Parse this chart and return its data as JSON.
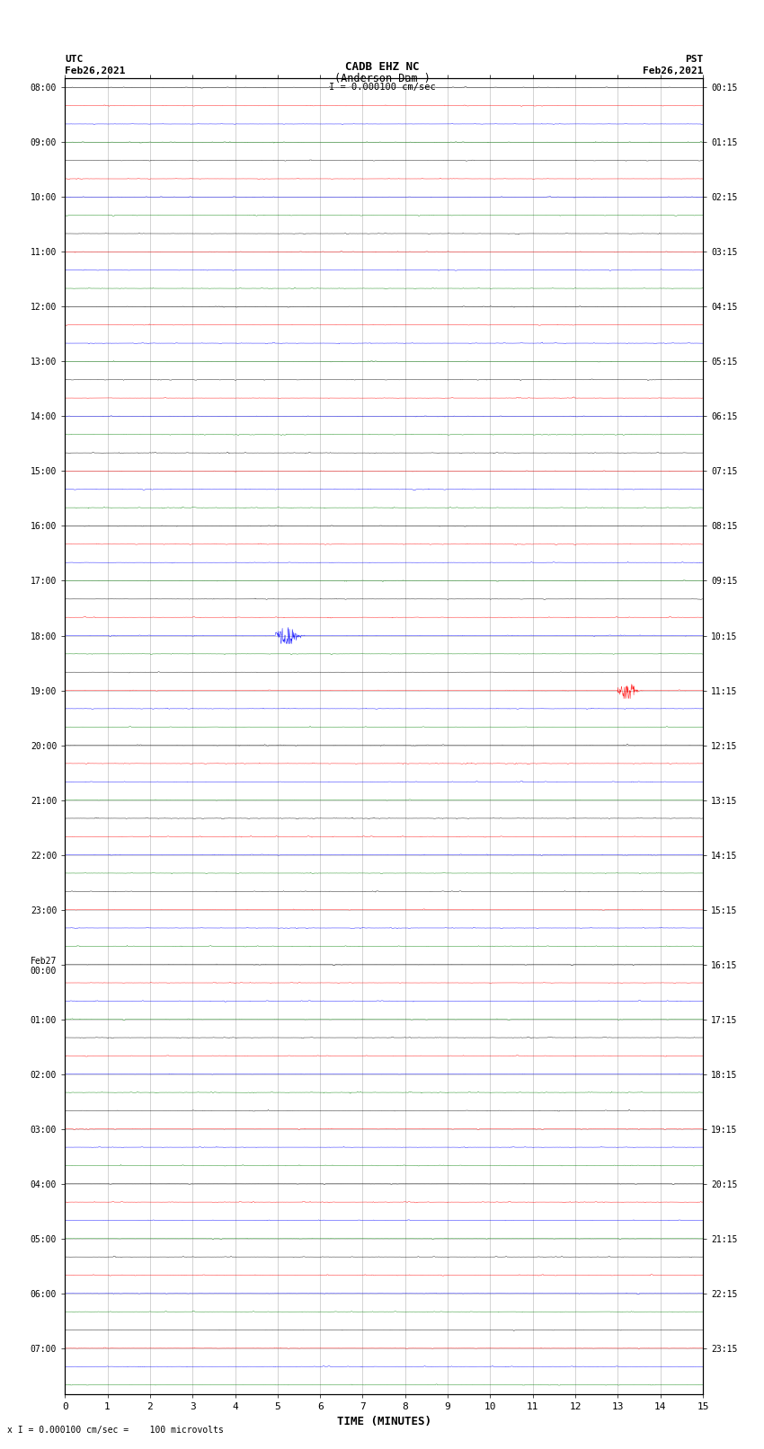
{
  "title_line1": "CADB EHZ NC",
  "title_line2": "(Anderson Dam )",
  "scale_label": "I = 0.000100 cm/sec",
  "left_header": "UTC\nFeb26,2021",
  "right_header": "PST\nFeb26,2021",
  "bottom_note": "x I = 0.000100 cm/sec =    100 microvolts",
  "xlabel": "TIME (MINUTES)",
  "xticks": [
    0,
    1,
    2,
    3,
    4,
    5,
    6,
    7,
    8,
    9,
    10,
    11,
    12,
    13,
    14,
    15
  ],
  "left_times": [
    "08:00",
    "",
    "",
    "09:00",
    "",
    "",
    "10:00",
    "",
    "",
    "11:00",
    "",
    "",
    "12:00",
    "",
    "",
    "13:00",
    "",
    "",
    "14:00",
    "",
    "",
    "15:00",
    "",
    "",
    "16:00",
    "",
    "",
    "17:00",
    "",
    "",
    "18:00",
    "",
    "",
    "19:00",
    "",
    "",
    "20:00",
    "",
    "",
    "21:00",
    "",
    "",
    "22:00",
    "",
    "",
    "23:00",
    "",
    "",
    "Feb27\n00:00",
    "",
    "",
    "01:00",
    "",
    "",
    "02:00",
    "",
    "",
    "03:00",
    "",
    "",
    "04:00",
    "",
    "",
    "05:00",
    "",
    "",
    "06:00",
    "",
    "",
    "07:00",
    "",
    ""
  ],
  "right_times": [
    "00:15",
    "",
    "",
    "01:15",
    "",
    "",
    "02:15",
    "",
    "",
    "03:15",
    "",
    "",
    "04:15",
    "",
    "",
    "05:15",
    "",
    "",
    "06:15",
    "",
    "",
    "07:15",
    "",
    "",
    "08:15",
    "",
    "",
    "09:15",
    "",
    "",
    "10:15",
    "",
    "",
    "11:15",
    "",
    "",
    "12:15",
    "",
    "",
    "13:15",
    "",
    "",
    "14:15",
    "",
    "",
    "15:15",
    "",
    "",
    "16:15",
    "",
    "",
    "17:15",
    "",
    "",
    "18:15",
    "",
    "",
    "19:15",
    "",
    "",
    "20:15",
    "",
    "",
    "21:15",
    "",
    "",
    "22:15",
    "",
    "",
    "23:15",
    "",
    ""
  ],
  "num_rows": 72,
  "colors_cycle": [
    "black",
    "red",
    "blue",
    "green"
  ],
  "background_color": "white",
  "noise_amplitude": 0.012,
  "event_row_18": 30,
  "event_row_19": 33,
  "seed": 42
}
